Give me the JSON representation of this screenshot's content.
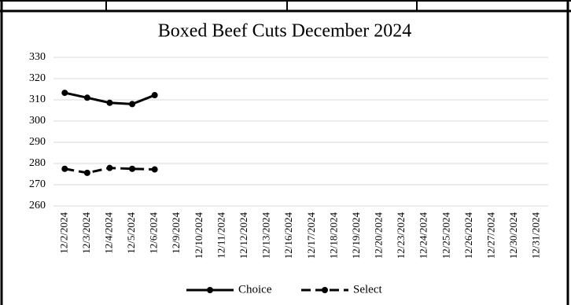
{
  "chart_data": {
    "type": "line",
    "title": "Boxed Beef Cuts December 2024",
    "categories": [
      "12/2/2024",
      "12/3/2024",
      "12/4/2024",
      "12/5/2024",
      "12/6/2024",
      "12/9/2024",
      "12/10/2024",
      "12/11/2024",
      "12/12/2024",
      "12/13/2024",
      "12/16/2024",
      "12/17/2024",
      "12/18/2024",
      "12/19/2024",
      "12/20/2024",
      "12/23/2024",
      "12/24/2024",
      "12/25/2024",
      "12/26/2024",
      "12/27/2024",
      "12/30/2024",
      "12/31/2024"
    ],
    "series": [
      {
        "name": "Choice",
        "color": "#000000",
        "dash": false,
        "values": [
          313.3,
          311.0,
          308.6,
          308.0,
          312.2,
          null,
          null,
          null,
          null,
          null,
          null,
          null,
          null,
          null,
          null,
          null,
          null,
          null,
          null,
          null,
          null,
          null
        ]
      },
      {
        "name": "Select",
        "color": "#000000",
        "dash": true,
        "values": [
          277.5,
          275.6,
          277.9,
          277.5,
          277.2,
          null,
          null,
          null,
          null,
          null,
          null,
          null,
          null,
          null,
          null,
          null,
          null,
          null,
          null,
          null,
          null,
          null
        ]
      }
    ],
    "ylim": [
      260,
      330
    ],
    "yticks": [
      260,
      270,
      280,
      290,
      300,
      310,
      320,
      330
    ],
    "grid": true,
    "legend": "bottom"
  }
}
